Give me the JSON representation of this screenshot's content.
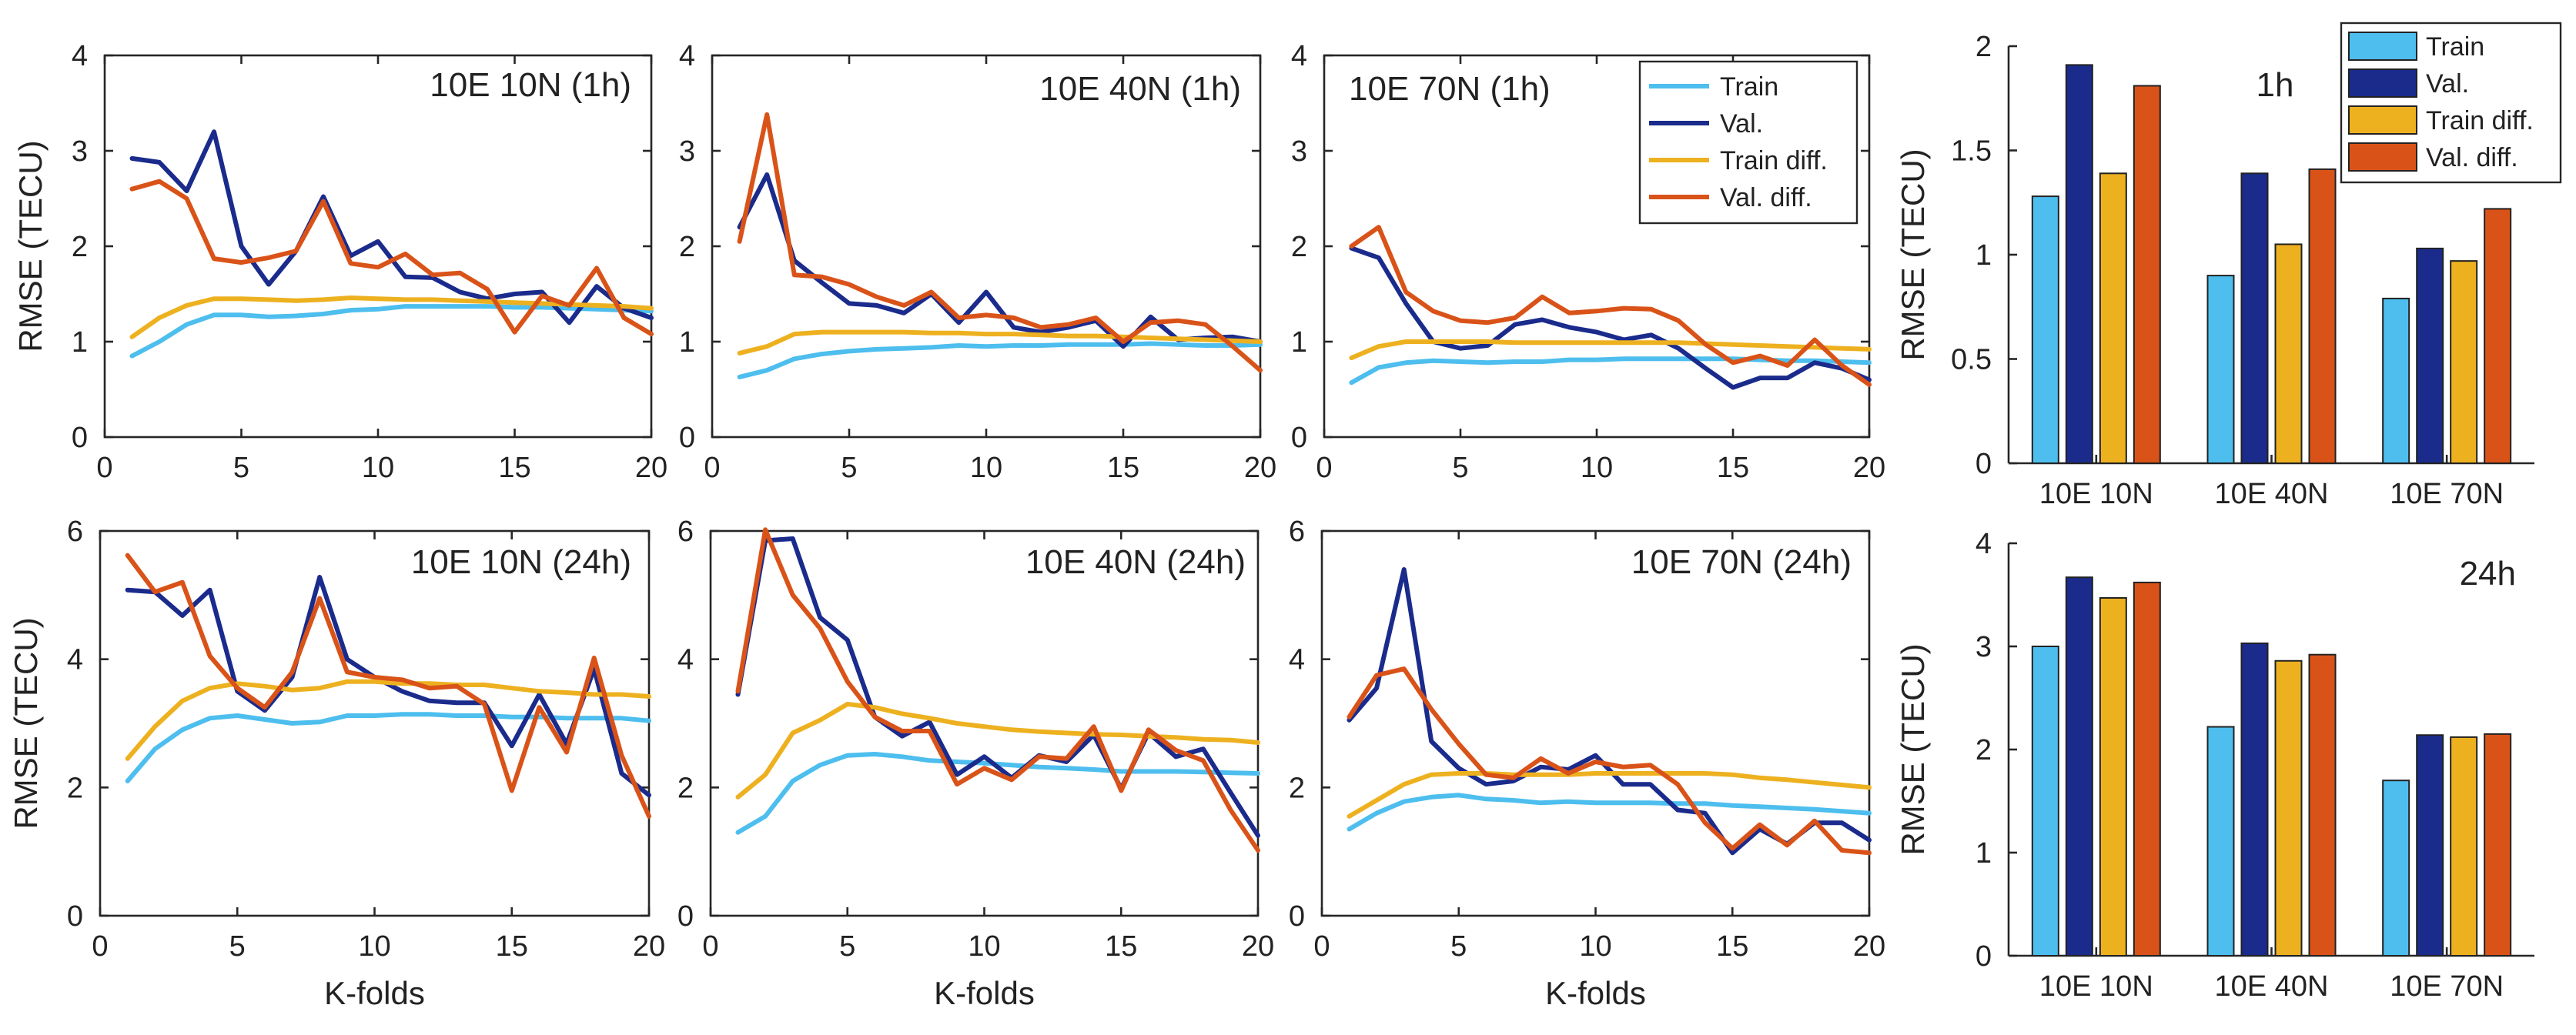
{
  "colors": {
    "train": "#4DBEEE",
    "val": "#1A2B8C",
    "train_diff": "#EDB120",
    "val_diff": "#D95319"
  },
  "legend_labels": [
    "Train",
    "Val.",
    "Train diff.",
    "Val. diff."
  ],
  "chart_data": [
    {
      "type": "line",
      "title": "10E 10N (1h)",
      "xlabel": "",
      "ylabel": "RMSE (TECU)",
      "xlim": [
        0,
        20
      ],
      "ylim": [
        0,
        4
      ],
      "xticks": [
        0,
        5,
        10,
        15,
        20
      ],
      "yticks": [
        0,
        1,
        2,
        3,
        4
      ],
      "x": [
        1,
        2,
        3,
        4,
        5,
        6,
        7,
        8,
        9,
        10,
        11,
        12,
        13,
        14,
        15,
        16,
        17,
        18,
        19,
        20
      ],
      "series": [
        {
          "name": "Train",
          "values": [
            0.85,
            1.0,
            1.18,
            1.28,
            1.28,
            1.26,
            1.27,
            1.29,
            1.33,
            1.34,
            1.37,
            1.37,
            1.37,
            1.37,
            1.36,
            1.36,
            1.35,
            1.34,
            1.33,
            1.32
          ]
        },
        {
          "name": "Val.",
          "values": [
            2.92,
            2.88,
            2.58,
            3.2,
            2.0,
            1.6,
            1.95,
            2.52,
            1.9,
            2.05,
            1.68,
            1.67,
            1.52,
            1.45,
            1.5,
            1.52,
            1.2,
            1.58,
            1.35,
            1.25
          ]
        },
        {
          "name": "Train diff.",
          "values": [
            1.05,
            1.25,
            1.38,
            1.45,
            1.45,
            1.44,
            1.43,
            1.44,
            1.46,
            1.45,
            1.44,
            1.44,
            1.43,
            1.42,
            1.41,
            1.4,
            1.39,
            1.38,
            1.37,
            1.35
          ]
        },
        {
          "name": "Val. diff.",
          "values": [
            2.6,
            2.68,
            2.5,
            1.87,
            1.83,
            1.88,
            1.95,
            2.47,
            1.82,
            1.78,
            1.92,
            1.7,
            1.72,
            1.55,
            1.1,
            1.48,
            1.38,
            1.77,
            1.25,
            1.08
          ]
        }
      ]
    },
    {
      "type": "line",
      "title": "10E 40N (1h)",
      "xlabel": "",
      "ylabel": "",
      "xlim": [
        0,
        20
      ],
      "ylim": [
        0,
        4
      ],
      "xticks": [
        0,
        5,
        10,
        15,
        20
      ],
      "yticks": [
        0,
        1,
        2,
        3,
        4
      ],
      "x": [
        1,
        2,
        3,
        4,
        5,
        6,
        7,
        8,
        9,
        10,
        11,
        12,
        13,
        14,
        15,
        16,
        17,
        18,
        19,
        20
      ],
      "series": [
        {
          "name": "Train",
          "values": [
            0.63,
            0.7,
            0.82,
            0.87,
            0.9,
            0.92,
            0.93,
            0.94,
            0.96,
            0.95,
            0.96,
            0.96,
            0.97,
            0.97,
            0.97,
            0.98,
            0.97,
            0.96,
            0.96,
            0.97
          ]
        },
        {
          "name": "Val.",
          "values": [
            2.2,
            2.75,
            1.85,
            1.62,
            1.4,
            1.38,
            1.3,
            1.5,
            1.2,
            1.52,
            1.15,
            1.1,
            1.15,
            1.22,
            0.95,
            1.26,
            1.02,
            1.04,
            1.05,
            1.0
          ]
        },
        {
          "name": "Train diff.",
          "values": [
            0.88,
            0.95,
            1.08,
            1.1,
            1.1,
            1.1,
            1.1,
            1.09,
            1.09,
            1.08,
            1.08,
            1.07,
            1.06,
            1.06,
            1.05,
            1.04,
            1.03,
            1.02,
            1.01,
            1.0
          ]
        },
        {
          "name": "Val. diff.",
          "values": [
            2.05,
            3.38,
            1.7,
            1.68,
            1.6,
            1.47,
            1.38,
            1.52,
            1.25,
            1.28,
            1.25,
            1.15,
            1.18,
            1.25,
            1.0,
            1.2,
            1.22,
            1.18,
            0.95,
            0.7
          ]
        }
      ]
    },
    {
      "type": "line",
      "title": "10E 70N (1h)",
      "xlabel": "",
      "ylabel": "",
      "xlim": [
        0,
        20
      ],
      "ylim": [
        0,
        4
      ],
      "xticks": [
        0,
        5,
        10,
        15,
        20
      ],
      "yticks": [
        0,
        1,
        2,
        3,
        4
      ],
      "legend": "top-right",
      "x": [
        1,
        2,
        3,
        4,
        5,
        6,
        7,
        8,
        9,
        10,
        11,
        12,
        13,
        14,
        15,
        16,
        17,
        18,
        19,
        20
      ],
      "series": [
        {
          "name": "Train",
          "values": [
            0.57,
            0.73,
            0.78,
            0.8,
            0.79,
            0.78,
            0.79,
            0.79,
            0.81,
            0.81,
            0.82,
            0.82,
            0.82,
            0.82,
            0.82,
            0.81,
            0.8,
            0.8,
            0.79,
            0.78
          ]
        },
        {
          "name": "Val.",
          "values": [
            1.98,
            1.88,
            1.4,
            1.0,
            0.93,
            0.96,
            1.18,
            1.23,
            1.15,
            1.1,
            1.02,
            1.07,
            0.93,
            0.72,
            0.52,
            0.62,
            0.62,
            0.78,
            0.72,
            0.6
          ]
        },
        {
          "name": "Train diff.",
          "values": [
            0.83,
            0.95,
            1.0,
            1.0,
            1.0,
            1.0,
            0.99,
            0.99,
            0.99,
            0.99,
            0.99,
            0.99,
            0.99,
            0.98,
            0.97,
            0.96,
            0.95,
            0.94,
            0.93,
            0.92
          ]
        },
        {
          "name": "Val. diff.",
          "values": [
            2.0,
            2.2,
            1.52,
            1.32,
            1.22,
            1.2,
            1.25,
            1.47,
            1.3,
            1.32,
            1.35,
            1.34,
            1.22,
            0.97,
            0.78,
            0.85,
            0.75,
            1.02,
            0.75,
            0.55
          ]
        }
      ]
    },
    {
      "type": "bar",
      "title": "1h",
      "xlabel": "",
      "ylabel": "RMSE (TECU)",
      "ylim": [
        0,
        2
      ],
      "yticks": [
        0,
        0.5,
        1,
        1.5,
        2
      ],
      "ytick_labels": [
        "0",
        "0.5",
        "1",
        "1.5",
        "2"
      ],
      "legend": "top-right",
      "categories": [
        "10E 10N",
        "10E 40N",
        "10E 70N"
      ],
      "series": [
        {
          "name": "Train",
          "values": [
            1.28,
            0.9,
            0.79
          ]
        },
        {
          "name": "Val.",
          "values": [
            1.91,
            1.39,
            1.03
          ]
        },
        {
          "name": "Train diff.",
          "values": [
            1.39,
            1.05,
            0.97
          ]
        },
        {
          "name": "Val. diff.",
          "values": [
            1.81,
            1.41,
            1.22
          ]
        }
      ]
    },
    {
      "type": "line",
      "title": "10E 10N (24h)",
      "xlabel": "K-folds",
      "ylabel": "RMSE (TECU)",
      "xlim": [
        0,
        20
      ],
      "ylim": [
        0,
        6
      ],
      "xticks": [
        0,
        5,
        10,
        15,
        20
      ],
      "yticks": [
        0,
        2,
        4,
        6
      ],
      "x": [
        1,
        2,
        3,
        4,
        5,
        6,
        7,
        8,
        9,
        10,
        11,
        12,
        13,
        14,
        15,
        16,
        17,
        18,
        19,
        20
      ],
      "series": [
        {
          "name": "Train",
          "values": [
            2.1,
            2.6,
            2.9,
            3.08,
            3.12,
            3.06,
            3.0,
            3.02,
            3.12,
            3.12,
            3.14,
            3.14,
            3.12,
            3.12,
            3.1,
            3.1,
            3.08,
            3.08,
            3.08,
            3.04
          ]
        },
        {
          "name": "Val.",
          "values": [
            5.08,
            5.05,
            4.68,
            5.08,
            3.5,
            3.2,
            3.72,
            5.28,
            4.0,
            3.72,
            3.5,
            3.35,
            3.32,
            3.32,
            2.65,
            3.45,
            2.68,
            3.85,
            2.22,
            1.88
          ]
        },
        {
          "name": "Train diff.",
          "values": [
            2.45,
            2.95,
            3.35,
            3.55,
            3.62,
            3.58,
            3.52,
            3.55,
            3.65,
            3.65,
            3.62,
            3.62,
            3.6,
            3.6,
            3.55,
            3.5,
            3.48,
            3.45,
            3.45,
            3.42
          ]
        },
        {
          "name": "Val. diff.",
          "values": [
            5.62,
            5.05,
            5.2,
            4.05,
            3.55,
            3.25,
            3.8,
            4.95,
            3.8,
            3.72,
            3.68,
            3.55,
            3.58,
            3.3,
            1.95,
            3.25,
            2.55,
            4.02,
            2.5,
            1.55
          ]
        }
      ]
    },
    {
      "type": "line",
      "title": "10E 40N (24h)",
      "xlabel": "K-folds",
      "ylabel": "",
      "xlim": [
        0,
        20
      ],
      "ylim": [
        0,
        6
      ],
      "xticks": [
        0,
        5,
        10,
        15,
        20
      ],
      "yticks": [
        0,
        2,
        4,
        6
      ],
      "x": [
        1,
        2,
        3,
        4,
        5,
        6,
        7,
        8,
        9,
        10,
        11,
        12,
        13,
        14,
        15,
        16,
        17,
        18,
        19,
        20
      ],
      "series": [
        {
          "name": "Train",
          "values": [
            1.3,
            1.55,
            2.1,
            2.35,
            2.5,
            2.52,
            2.48,
            2.42,
            2.4,
            2.38,
            2.35,
            2.32,
            2.3,
            2.28,
            2.25,
            2.25,
            2.25,
            2.24,
            2.23,
            2.22
          ]
        },
        {
          "name": "Val.",
          "values": [
            3.45,
            5.85,
            5.88,
            4.65,
            4.3,
            3.1,
            2.8,
            3.02,
            2.2,
            2.48,
            2.15,
            2.5,
            2.4,
            2.82,
            1.98,
            2.85,
            2.48,
            2.6,
            1.92,
            1.25
          ]
        },
        {
          "name": "Train diff.",
          "values": [
            1.85,
            2.2,
            2.85,
            3.05,
            3.3,
            3.25,
            3.15,
            3.08,
            3.0,
            2.95,
            2.9,
            2.87,
            2.85,
            2.83,
            2.82,
            2.8,
            2.78,
            2.75,
            2.74,
            2.7
          ]
        },
        {
          "name": "Val. diff.",
          "values": [
            3.5,
            6.02,
            5.0,
            4.48,
            3.65,
            3.1,
            2.88,
            2.88,
            2.05,
            2.3,
            2.12,
            2.48,
            2.45,
            2.95,
            1.95,
            2.9,
            2.58,
            2.42,
            1.65,
            1.02
          ]
        }
      ]
    },
    {
      "type": "line",
      "title": "10E 70N (24h)",
      "xlabel": "K-folds",
      "ylabel": "",
      "xlim": [
        0,
        20
      ],
      "ylim": [
        0,
        6
      ],
      "xticks": [
        0,
        5,
        10,
        15,
        20
      ],
      "yticks": [
        0,
        2,
        4,
        6
      ],
      "x": [
        1,
        2,
        3,
        4,
        5,
        6,
        7,
        8,
        9,
        10,
        11,
        12,
        13,
        14,
        15,
        16,
        17,
        18,
        19,
        20
      ],
      "series": [
        {
          "name": "Train",
          "values": [
            1.35,
            1.6,
            1.78,
            1.85,
            1.88,
            1.82,
            1.8,
            1.76,
            1.78,
            1.76,
            1.76,
            1.76,
            1.75,
            1.75,
            1.72,
            1.7,
            1.68,
            1.66,
            1.63,
            1.6
          ]
        },
        {
          "name": "Val.",
          "values": [
            3.05,
            3.55,
            5.4,
            2.72,
            2.3,
            2.05,
            2.1,
            2.32,
            2.28,
            2.5,
            2.05,
            2.05,
            1.65,
            1.6,
            0.98,
            1.35,
            1.12,
            1.45,
            1.45,
            1.18
          ]
        },
        {
          "name": "Train diff.",
          "values": [
            1.55,
            1.8,
            2.05,
            2.2,
            2.22,
            2.22,
            2.2,
            2.2,
            2.2,
            2.22,
            2.22,
            2.22,
            2.22,
            2.22,
            2.2,
            2.15,
            2.12,
            2.08,
            2.04,
            2.0
          ]
        },
        {
          "name": "Val. diff.",
          "values": [
            3.1,
            3.75,
            3.85,
            3.22,
            2.68,
            2.2,
            2.15,
            2.45,
            2.22,
            2.4,
            2.32,
            2.35,
            2.05,
            1.45,
            1.05,
            1.42,
            1.1,
            1.48,
            1.02,
            0.98
          ]
        }
      ]
    },
    {
      "type": "bar",
      "title": "24h",
      "xlabel": "",
      "ylabel": "RMSE (TECU)",
      "ylim": [
        0,
        4
      ],
      "yticks": [
        0,
        1,
        2,
        3,
        4
      ],
      "ytick_labels": [
        "0",
        "1",
        "2",
        "3",
        "4"
      ],
      "categories": [
        "10E 10N",
        "10E 40N",
        "10E 70N"
      ],
      "series": [
        {
          "name": "Train",
          "values": [
            3.0,
            2.22,
            1.7
          ]
        },
        {
          "name": "Val.",
          "values": [
            3.67,
            3.03,
            2.14
          ]
        },
        {
          "name": "Train diff.",
          "values": [
            3.47,
            2.86,
            2.12
          ]
        },
        {
          "name": "Val. diff.",
          "values": [
            3.62,
            2.92,
            2.15
          ]
        }
      ]
    }
  ]
}
